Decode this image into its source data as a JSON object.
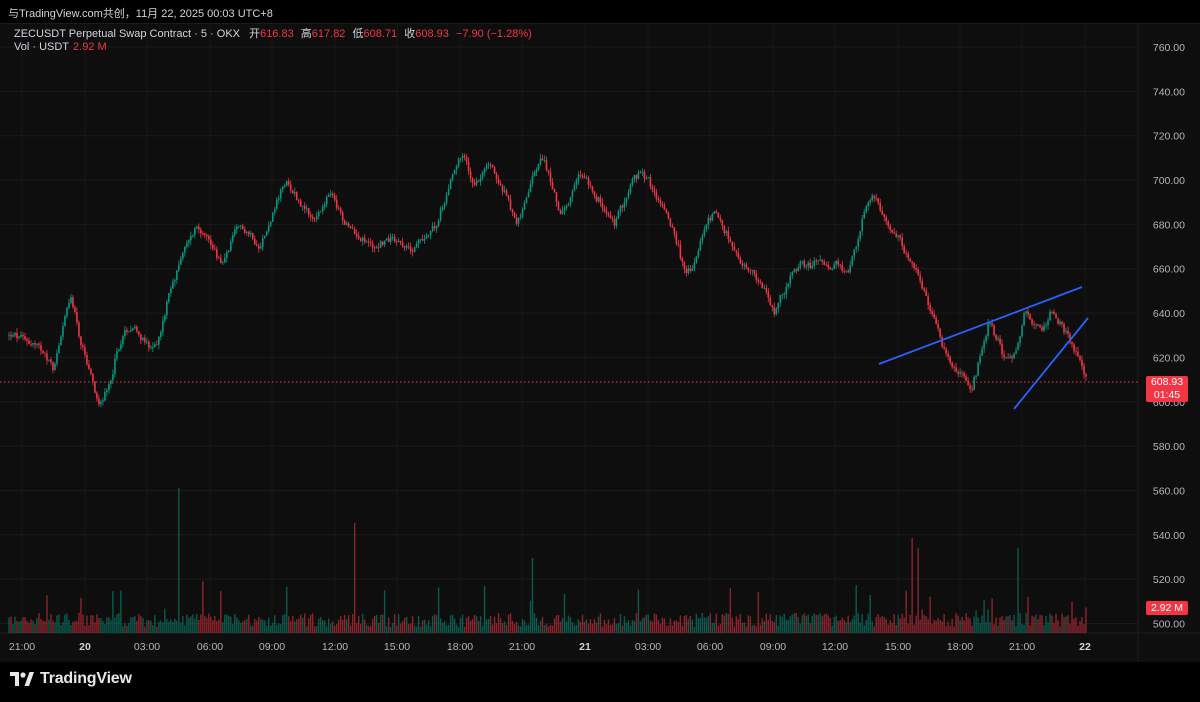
{
  "caption": "与TradingView.com共创，11月 22, 2025 00:03 UTC+8",
  "legend": {
    "symbol": "ZECUSDT Perpetual Swap Contract · 5 · OKX",
    "open_label": "开",
    "open": "616.83",
    "high_label": "高",
    "high": "617.82",
    "low_label": "低",
    "low": "608.71",
    "close_label": "收",
    "close": "608.93",
    "change": "−7.90 (−1.28%)",
    "vol_label": "Vol · USDT",
    "vol_value": "2.92 M"
  },
  "price_tag": {
    "price": "608.93",
    "countdown": "01:45"
  },
  "vol_tag": "2.92 M",
  "brand": "TradingView",
  "colors": {
    "up": "#089981",
    "down": "#f23645",
    "trendline": "#2962ff",
    "bg": "#0e0e0e",
    "axis_text": "#b2b5be"
  },
  "chart_data": {
    "type": "candlestick",
    "y_axis": {
      "min": 500,
      "max": 760,
      "ticks": [
        "760.00",
        "740.00",
        "720.00",
        "700.00",
        "680.00",
        "660.00",
        "640.00",
        "620.00",
        "600.00",
        "580.00",
        "560.00",
        "540.00",
        "520.00",
        "500.00"
      ]
    },
    "x_axis_ticks": [
      "21:00",
      "20",
      "03:00",
      "06:00",
      "09:00",
      "12:00",
      "15:00",
      "18:00",
      "21:00",
      "21",
      "03:00",
      "06:00",
      "09:00",
      "12:00",
      "15:00",
      "18:00",
      "21:00",
      "22"
    ],
    "price_path": [
      [
        0,
        630
      ],
      [
        2,
        628
      ],
      [
        4,
        622
      ],
      [
        5,
        614
      ],
      [
        6,
        636
      ],
      [
        7,
        648
      ],
      [
        8,
        626
      ],
      [
        9,
        612
      ],
      [
        10,
        600
      ],
      [
        11,
        604
      ],
      [
        12,
        622
      ],
      [
        13,
        632
      ],
      [
        14,
        635
      ],
      [
        15,
        628
      ],
      [
        16,
        622
      ],
      [
        17,
        632
      ],
      [
        18,
        650
      ],
      [
        19,
        662
      ],
      [
        20,
        672
      ],
      [
        21,
        680
      ],
      [
        22,
        676
      ],
      [
        23,
        668
      ],
      [
        24,
        662
      ],
      [
        25,
        674
      ],
      [
        26,
        680
      ],
      [
        27,
        676
      ],
      [
        28,
        670
      ],
      [
        29,
        678
      ],
      [
        30,
        690
      ],
      [
        31,
        700
      ],
      [
        32,
        694
      ],
      [
        33,
        688
      ],
      [
        34,
        682
      ],
      [
        35,
        686
      ],
      [
        36,
        694
      ],
      [
        37,
        686
      ],
      [
        38,
        678
      ],
      [
        39,
        676
      ],
      [
        40,
        672
      ],
      [
        41,
        670
      ],
      [
        42,
        672
      ],
      [
        43,
        674
      ],
      [
        44,
        672
      ],
      [
        45,
        668
      ],
      [
        46,
        672
      ],
      [
        47,
        676
      ],
      [
        48,
        680
      ],
      [
        49,
        692
      ],
      [
        50,
        706
      ],
      [
        51,
        712
      ],
      [
        52,
        698
      ],
      [
        53,
        702
      ],
      [
        54,
        708
      ],
      [
        55,
        698
      ],
      [
        56,
        692
      ],
      [
        57,
        680
      ],
      [
        58,
        690
      ],
      [
        59,
        704
      ],
      [
        60,
        710
      ],
      [
        61,
        696
      ],
      [
        62,
        684
      ],
      [
        63,
        690
      ],
      [
        64,
        704
      ],
      [
        65,
        700
      ],
      [
        66,
        692
      ],
      [
        67,
        684
      ],
      [
        68,
        680
      ],
      [
        69,
        690
      ],
      [
        70,
        700
      ],
      [
        71,
        704
      ],
      [
        72,
        698
      ],
      [
        73,
        690
      ],
      [
        74,
        684
      ],
      [
        75,
        672
      ],
      [
        76,
        656
      ],
      [
        77,
        664
      ],
      [
        78,
        676
      ],
      [
        79,
        686
      ],
      [
        80,
        680
      ],
      [
        81,
        672
      ],
      [
        82,
        662
      ],
      [
        83,
        660
      ],
      [
        84,
        656
      ],
      [
        85,
        648
      ],
      [
        86,
        640
      ],
      [
        87,
        650
      ],
      [
        88,
        658
      ],
      [
        89,
        662
      ],
      [
        90,
        660
      ],
      [
        91,
        664
      ],
      [
        92,
        660
      ],
      [
        93,
        662
      ],
      [
        94,
        656
      ],
      [
        95,
        668
      ],
      [
        96,
        686
      ],
      [
        97,
        694
      ],
      [
        98,
        684
      ],
      [
        99,
        678
      ],
      [
        100,
        674
      ],
      [
        101,
        664
      ],
      [
        102,
        656
      ],
      [
        103,
        646
      ],
      [
        104,
        636
      ],
      [
        105,
        624
      ],
      [
        106,
        616
      ],
      [
        107,
        612
      ],
      [
        108,
        604
      ],
      [
        109,
        620
      ],
      [
        110,
        636
      ],
      [
        111,
        628
      ],
      [
        112,
        618
      ],
      [
        113,
        622
      ],
      [
        114,
        640
      ],
      [
        115,
        636
      ],
      [
        116,
        630
      ],
      [
        117,
        642
      ],
      [
        118,
        636
      ],
      [
        119,
        628
      ],
      [
        120,
        622
      ],
      [
        121,
        610
      ]
    ],
    "overlay_lines": [
      {
        "from": [
          "14:00 (21)",
          617.5
        ],
        "to": [
          "22:00 (21)",
          652
        ]
      },
      {
        "from": [
          "19:55 (21)",
          596.5
        ],
        "to": [
          "23:00 (21)",
          638
        ]
      }
    ],
    "horizontal_line": 608.93,
    "volume": {
      "last": "2.92 M"
    }
  }
}
